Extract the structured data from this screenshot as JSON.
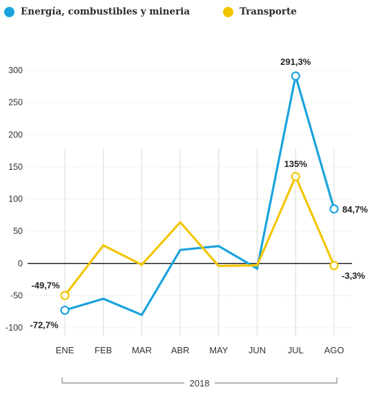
{
  "legend": [
    {
      "label": "Energía, combustibles y mineria",
      "color": "#1aa3dc"
    },
    {
      "label": "Transporte",
      "color": "#f2c500"
    }
  ],
  "chart_data": {
    "type": "line",
    "categories": [
      "ENE",
      "FEB",
      "MAR",
      "ABR",
      "MAY",
      "JUN",
      "JUL",
      "AGO"
    ],
    "series": [
      {
        "name": "Energía, combustibles y mineria",
        "color": "#1aa3dc",
        "values": [
          -72.7,
          -55,
          -80,
          21,
          27,
          -8,
          291.3,
          84.7
        ]
      },
      {
        "name": "Transporte",
        "color": "#f2c500",
        "values": [
          -49.7,
          28,
          -2,
          64,
          -4,
          -3,
          135,
          -3.3
        ]
      }
    ],
    "ylim": [
      -100,
      300
    ],
    "yticks": [
      300,
      250,
      200,
      150,
      100,
      50,
      0,
      -50,
      -100
    ],
    "grid": true,
    "legend_position": "top-left",
    "annotations": [
      {
        "series": 0,
        "index": 0,
        "text": "-72,7%"
      },
      {
        "series": 1,
        "index": 0,
        "text": "-49,7%"
      },
      {
        "series": 0,
        "index": 6,
        "text": "291,3%"
      },
      {
        "series": 1,
        "index": 6,
        "text": "135%"
      },
      {
        "series": 0,
        "index": 7,
        "text": "84,7%"
      },
      {
        "series": 1,
        "index": 7,
        "text": "-3,3%"
      }
    ],
    "period_label": "2018"
  }
}
